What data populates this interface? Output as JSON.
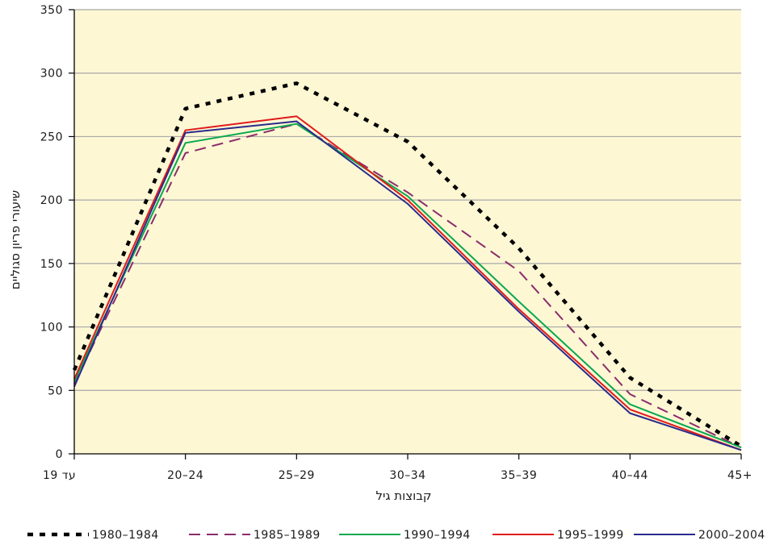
{
  "chart_data": {
    "type": "line",
    "xlabel": "קבוצות גיל",
    "ylabel": "שיעורי פריון סגוליים",
    "categories": [
      "עד 19",
      "20–24",
      "25–29",
      "30–34",
      "35–39",
      "40–44",
      "45+"
    ],
    "ylim": [
      0,
      350
    ],
    "yticks": [
      0,
      50,
      100,
      150,
      200,
      250,
      300,
      350
    ],
    "grid": true,
    "legend_position": "bottom",
    "plot_background": "#fdf7d4",
    "series": [
      {
        "name": "1980–1984",
        "color": "#000000",
        "style": "dotted",
        "values": [
          66,
          272,
          292,
          246,
          162,
          60,
          6
        ]
      },
      {
        "name": "1985–1989",
        "color": "#8b2c6b",
        "style": "dashed",
        "values": [
          55,
          237,
          260,
          206,
          144,
          47,
          5
        ]
      },
      {
        "name": "1990–1994",
        "color": "#0aa84f",
        "style": "solid",
        "values": [
          57,
          245,
          260,
          203,
          120,
          39,
          5
        ]
      },
      {
        "name": "1995–1999",
        "color": "#e01b1b",
        "style": "solid",
        "values": [
          59,
          255,
          266,
          200,
          114,
          35,
          3
        ]
      },
      {
        "name": "2000–2004",
        "color": "#2a2a8c",
        "style": "solid",
        "values": [
          53,
          253,
          262,
          197,
          112,
          32,
          3
        ]
      }
    ]
  }
}
